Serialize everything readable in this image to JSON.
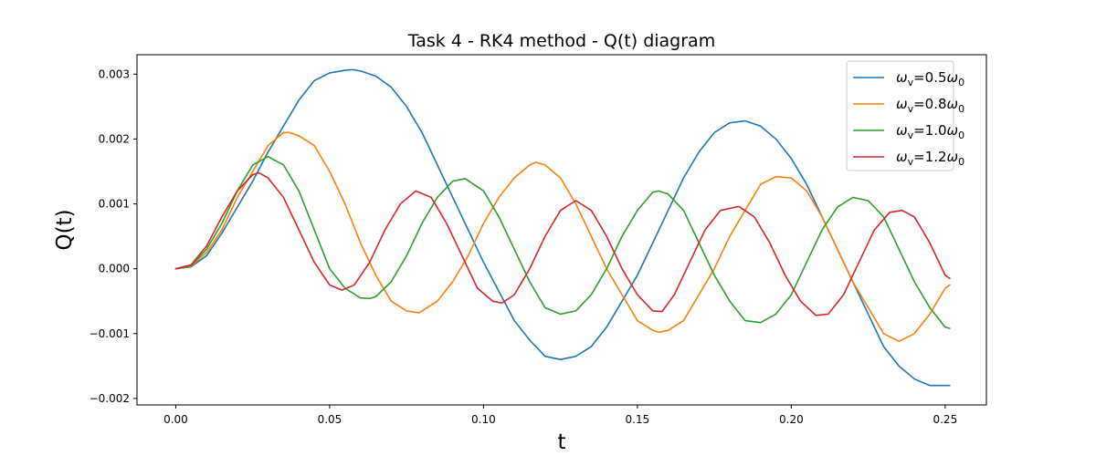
{
  "chart_data": {
    "type": "line",
    "title": "Task 4 - RK4 method - Q(t) diagram",
    "xlabel": "t",
    "ylabel": "Q(t)",
    "xlim": [
      -0.0126,
      0.2634
    ],
    "ylim": [
      -0.0021,
      0.0033
    ],
    "xticks": [
      0.0,
      0.05,
      0.1,
      0.15,
      0.2,
      0.25
    ],
    "xtick_labels": [
      "0.00",
      "0.05",
      "0.10",
      "0.15",
      "0.20",
      "0.25"
    ],
    "yticks": [
      -0.002,
      -0.001,
      0.0,
      0.001,
      0.002,
      0.003
    ],
    "ytick_labels": [
      "−0.002",
      "−0.001",
      "0.000",
      "0.001",
      "0.002",
      "0.003"
    ],
    "grid": false,
    "legend_position": "top-right",
    "series": [
      {
        "name": "ωv=0.5ω0",
        "legend_parts": {
          "sub": "v",
          "mid": "=0.5",
          "sub2": "0"
        },
        "color": "#1f77b4",
        "points": [
          [
            0.0,
            0.0
          ],
          [
            0.005,
            3e-05
          ],
          [
            0.01,
            0.0002
          ],
          [
            0.015,
            0.00055
          ],
          [
            0.02,
            0.00095
          ],
          [
            0.025,
            0.00135
          ],
          [
            0.03,
            0.0018
          ],
          [
            0.035,
            0.0022
          ],
          [
            0.04,
            0.0026
          ],
          [
            0.045,
            0.0029
          ],
          [
            0.05,
            0.00302
          ],
          [
            0.055,
            0.00306
          ],
          [
            0.0575,
            0.00307
          ],
          [
            0.06,
            0.00305
          ],
          [
            0.065,
            0.00297
          ],
          [
            0.07,
            0.0028
          ],
          [
            0.075,
            0.0025
          ],
          [
            0.08,
            0.0021
          ],
          [
            0.085,
            0.0016
          ],
          [
            0.09,
            0.0011
          ],
          [
            0.095,
            0.0006
          ],
          [
            0.1,
            0.0001
          ],
          [
            0.105,
            -0.00035
          ],
          [
            0.11,
            -0.0008
          ],
          [
            0.115,
            -0.0011
          ],
          [
            0.12,
            -0.00135
          ],
          [
            0.125,
            -0.0014
          ],
          [
            0.13,
            -0.00135
          ],
          [
            0.135,
            -0.0012
          ],
          [
            0.14,
            -0.0009
          ],
          [
            0.145,
            -0.0005
          ],
          [
            0.15,
            -0.0001
          ],
          [
            0.155,
            0.0004
          ],
          [
            0.16,
            0.0009
          ],
          [
            0.165,
            0.0014
          ],
          [
            0.17,
            0.0018
          ],
          [
            0.175,
            0.0021
          ],
          [
            0.18,
            0.00225
          ],
          [
            0.185,
            0.00228
          ],
          [
            0.19,
            0.0022
          ],
          [
            0.195,
            0.002
          ],
          [
            0.2,
            0.0017
          ],
          [
            0.205,
            0.0013
          ],
          [
            0.21,
            0.0008
          ],
          [
            0.215,
            0.0003
          ],
          [
            0.22,
            -0.0002
          ],
          [
            0.225,
            -0.0007
          ],
          [
            0.23,
            -0.0012
          ],
          [
            0.235,
            -0.0015
          ],
          [
            0.24,
            -0.0017
          ],
          [
            0.245,
            -0.0018
          ],
          [
            0.25,
            -0.0018
          ],
          [
            0.2515,
            -0.0018
          ]
        ]
      },
      {
        "name": "ωv=0.8ω0",
        "legend_parts": {
          "sub": "v",
          "mid": "=0.8",
          "sub2": "0"
        },
        "color": "#ff7f0e",
        "points": [
          [
            0.0,
            0.0
          ],
          [
            0.005,
            4e-05
          ],
          [
            0.01,
            0.00025
          ],
          [
            0.015,
            0.0006
          ],
          [
            0.02,
            0.0011
          ],
          [
            0.025,
            0.0015
          ],
          [
            0.03,
            0.0019
          ],
          [
            0.035,
            0.0021
          ],
          [
            0.037,
            0.0021
          ],
          [
            0.04,
            0.00205
          ],
          [
            0.045,
            0.0019
          ],
          [
            0.05,
            0.0015
          ],
          [
            0.055,
            0.001
          ],
          [
            0.06,
            0.0004
          ],
          [
            0.065,
            -0.0001
          ],
          [
            0.07,
            -0.0005
          ],
          [
            0.075,
            -0.00065
          ],
          [
            0.079,
            -0.00068
          ],
          [
            0.085,
            -0.0005
          ],
          [
            0.09,
            -0.0002
          ],
          [
            0.095,
            0.0002
          ],
          [
            0.1,
            0.0007
          ],
          [
            0.105,
            0.0011
          ],
          [
            0.11,
            0.0014
          ],
          [
            0.115,
            0.0016
          ],
          [
            0.117,
            0.00164
          ],
          [
            0.12,
            0.0016
          ],
          [
            0.125,
            0.0014
          ],
          [
            0.13,
            0.001
          ],
          [
            0.135,
            0.0005
          ],
          [
            0.14,
            0.0
          ],
          [
            0.145,
            -0.0004
          ],
          [
            0.15,
            -0.0008
          ],
          [
            0.155,
            -0.00095
          ],
          [
            0.157,
            -0.00098
          ],
          [
            0.16,
            -0.00095
          ],
          [
            0.165,
            -0.0008
          ],
          [
            0.17,
            -0.0004
          ],
          [
            0.175,
            0.0
          ],
          [
            0.18,
            0.0005
          ],
          [
            0.185,
            0.0009
          ],
          [
            0.19,
            0.0013
          ],
          [
            0.195,
            0.00142
          ],
          [
            0.2,
            0.0014
          ],
          [
            0.205,
            0.0012
          ],
          [
            0.21,
            0.0008
          ],
          [
            0.215,
            0.0003
          ],
          [
            0.22,
            -0.0002
          ],
          [
            0.225,
            -0.0006
          ],
          [
            0.23,
            -0.001
          ],
          [
            0.235,
            -0.00112
          ],
          [
            0.24,
            -0.001
          ],
          [
            0.245,
            -0.0007
          ],
          [
            0.25,
            -0.0003
          ],
          [
            0.2515,
            -0.00025
          ]
        ]
      },
      {
        "name": "ωv=1.0ω0",
        "legend_parts": {
          "sub": "v",
          "mid": "=1.0",
          "sub2": "0"
        },
        "color": "#2ca02c",
        "points": [
          [
            0.0,
            0.0
          ],
          [
            0.005,
            5e-05
          ],
          [
            0.01,
            0.0003
          ],
          [
            0.015,
            0.0007
          ],
          [
            0.02,
            0.0012
          ],
          [
            0.025,
            0.0016
          ],
          [
            0.03,
            0.00173
          ],
          [
            0.035,
            0.0016
          ],
          [
            0.04,
            0.0012
          ],
          [
            0.045,
            0.0006
          ],
          [
            0.05,
            0.0
          ],
          [
            0.055,
            -0.0003
          ],
          [
            0.06,
            -0.00045
          ],
          [
            0.063,
            -0.00046
          ],
          [
            0.065,
            -0.00043
          ],
          [
            0.07,
            -0.0002
          ],
          [
            0.075,
            0.0002
          ],
          [
            0.08,
            0.0007
          ],
          [
            0.085,
            0.0011
          ],
          [
            0.09,
            0.00135
          ],
          [
            0.094,
            0.00139
          ],
          [
            0.1,
            0.0012
          ],
          [
            0.105,
            0.0008
          ],
          [
            0.11,
            0.0003
          ],
          [
            0.115,
            -0.0002
          ],
          [
            0.12,
            -0.0006
          ],
          [
            0.125,
            -0.0007
          ],
          [
            0.13,
            -0.00065
          ],
          [
            0.135,
            -0.0004
          ],
          [
            0.14,
            0.0
          ],
          [
            0.145,
            0.0005
          ],
          [
            0.15,
            0.0009
          ],
          [
            0.155,
            0.00118
          ],
          [
            0.157,
            0.0012
          ],
          [
            0.16,
            0.00115
          ],
          [
            0.165,
            0.0009
          ],
          [
            0.17,
            0.0004
          ],
          [
            0.175,
            -0.0001
          ],
          [
            0.18,
            -0.0005
          ],
          [
            0.185,
            -0.0008
          ],
          [
            0.19,
            -0.00083
          ],
          [
            0.195,
            -0.0007
          ],
          [
            0.2,
            -0.0004
          ],
          [
            0.205,
            0.0001
          ],
          [
            0.21,
            0.0006
          ],
          [
            0.215,
            0.00095
          ],
          [
            0.22,
            0.0011
          ],
          [
            0.225,
            0.00105
          ],
          [
            0.23,
            0.0008
          ],
          [
            0.235,
            0.0003
          ],
          [
            0.24,
            -0.0002
          ],
          [
            0.245,
            -0.0006
          ],
          [
            0.25,
            -0.0009
          ],
          [
            0.2515,
            -0.00092
          ]
        ]
      },
      {
        "name": "ωv=1.2ω0",
        "legend_parts": {
          "sub": "v",
          "mid": "=1.2",
          "sub2": "0"
        },
        "color": "#d62728",
        "points": [
          [
            0.0,
            0.0
          ],
          [
            0.005,
            6e-05
          ],
          [
            0.01,
            0.00035
          ],
          [
            0.015,
            0.0008
          ],
          [
            0.02,
            0.0012
          ],
          [
            0.025,
            0.00145
          ],
          [
            0.027,
            0.00148
          ],
          [
            0.03,
            0.0014
          ],
          [
            0.035,
            0.0011
          ],
          [
            0.04,
            0.0006
          ],
          [
            0.045,
            0.0001
          ],
          [
            0.05,
            -0.00025
          ],
          [
            0.054,
            -0.00033
          ],
          [
            0.058,
            -0.00025
          ],
          [
            0.063,
            0.0001
          ],
          [
            0.068,
            0.0006
          ],
          [
            0.073,
            0.001
          ],
          [
            0.078,
            0.0012
          ],
          [
            0.083,
            0.0011
          ],
          [
            0.088,
            0.0007
          ],
          [
            0.093,
            0.0002
          ],
          [
            0.098,
            -0.0003
          ],
          [
            0.103,
            -0.0005
          ],
          [
            0.106,
            -0.00053
          ],
          [
            0.11,
            -0.0004
          ],
          [
            0.115,
            0.0
          ],
          [
            0.12,
            0.0005
          ],
          [
            0.125,
            0.0009
          ],
          [
            0.13,
            0.00105
          ],
          [
            0.135,
            0.0009
          ],
          [
            0.14,
            0.0005
          ],
          [
            0.145,
            0.0
          ],
          [
            0.15,
            -0.0004
          ],
          [
            0.155,
            -0.00065
          ],
          [
            0.158,
            -0.00066
          ],
          [
            0.162,
            -0.0004
          ],
          [
            0.167,
            0.0001
          ],
          [
            0.172,
            0.0006
          ],
          [
            0.177,
            0.0009
          ],
          [
            0.183,
            0.00096
          ],
          [
            0.188,
            0.0008
          ],
          [
            0.193,
            0.0004
          ],
          [
            0.198,
            -0.0001
          ],
          [
            0.203,
            -0.0005
          ],
          [
            0.208,
            -0.00072
          ],
          [
            0.212,
            -0.0007
          ],
          [
            0.217,
            -0.0004
          ],
          [
            0.222,
            0.0001
          ],
          [
            0.227,
            0.0006
          ],
          [
            0.232,
            0.00087
          ],
          [
            0.236,
            0.0009
          ],
          [
            0.24,
            0.0008
          ],
          [
            0.245,
            0.0004
          ],
          [
            0.25,
            -0.0001
          ],
          [
            0.2515,
            -0.00015
          ]
        ]
      }
    ]
  }
}
